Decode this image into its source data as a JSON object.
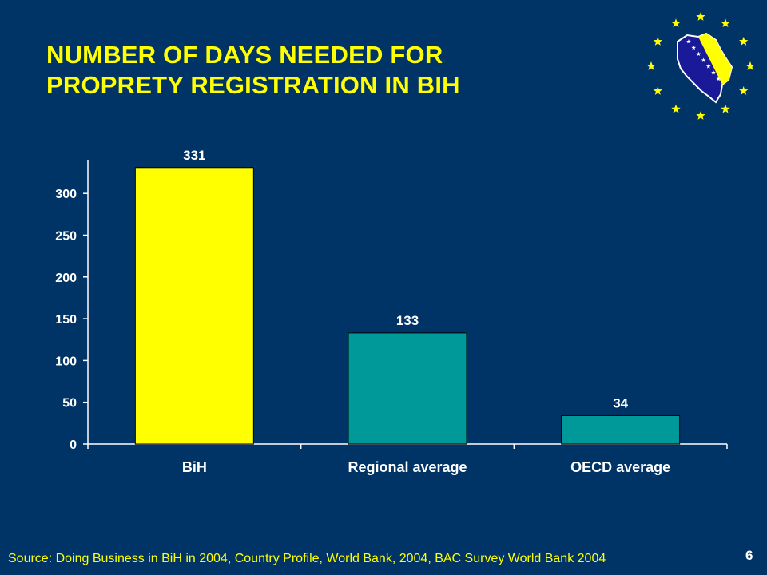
{
  "slide": {
    "title_line1": "NUMBER OF DAYS NEEDED FOR",
    "title_line2": "PROPRETY REGISTRATION IN BIH",
    "source": "Source: Doing Business in BiH in 2004, Country Profile, World Bank, 2004, BAC Survey World Bank 2004",
    "page_number": "6",
    "logo_icon": "eu-stars-bih-map-icon"
  },
  "colors": {
    "background": "#003366",
    "title": "#FFFF00",
    "bih_bar": "#FFFF00",
    "other_bars": "#009999",
    "axis_text": "#FFFFFF",
    "source_text": "#FFFF00",
    "stars": "#FFFF00",
    "map_blue": "#1A1A99"
  },
  "chart_data": {
    "type": "bar",
    "categories": [
      "BiH",
      "Regional average",
      "OECD average"
    ],
    "values": [
      331,
      133,
      34
    ],
    "data_labels": [
      "331",
      "133",
      "34"
    ],
    "bar_colors": [
      "#FFFF00",
      "#009999",
      "#009999"
    ],
    "ylim": [
      0,
      340
    ],
    "yticks": [
      0,
      50,
      100,
      150,
      200,
      250,
      300
    ],
    "grid": false,
    "legend": "none",
    "title": "",
    "xlabel": "",
    "ylabel": ""
  }
}
